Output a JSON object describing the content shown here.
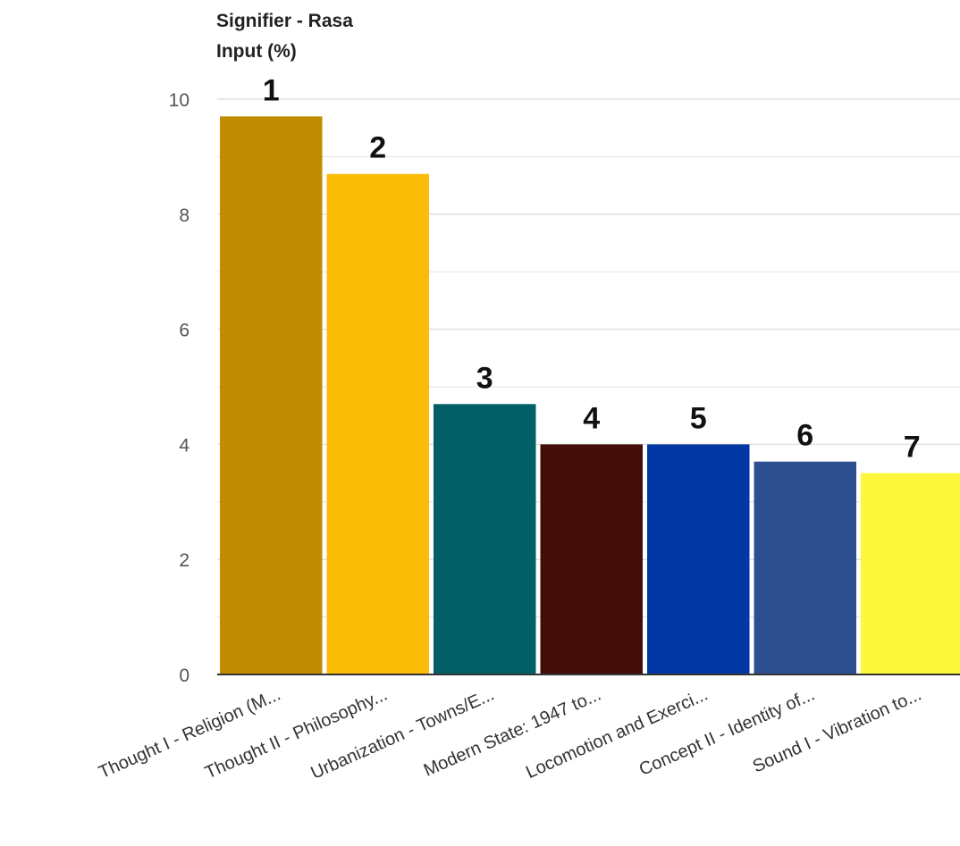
{
  "chart_data": {
    "type": "bar",
    "title": "Signifier - Rasa",
    "ylabel": "Input (%)",
    "xlabel": "",
    "ylim": [
      0,
      10
    ],
    "yticks": [
      0,
      2,
      4,
      6,
      8,
      10
    ],
    "grid": true,
    "categories": [
      "Thought I - Religion (M...",
      "Thought II - Philosophy...",
      "Urbanization - Towns/E...",
      "Modern State: 1947 to...",
      "Locomotion and Exerci...",
      "Concept II - Identity of...",
      "Sound I - Vibration to..."
    ],
    "values": [
      9.7,
      8.7,
      4.7,
      4.0,
      4.0,
      3.7,
      3.5
    ],
    "rank_labels": [
      "1",
      "2",
      "3",
      "4",
      "5",
      "6",
      "7"
    ],
    "colors": [
      "#bf8c02",
      "#fbbc05",
      "#015f65",
      "#430e0a",
      "#0138a5",
      "#2e4f8f",
      "#fdf83a"
    ],
    "gridline_color": "#e0e0e0",
    "baseline_color": "#333333"
  }
}
